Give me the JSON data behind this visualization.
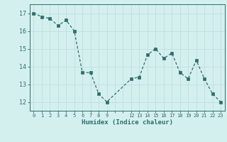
{
  "x": [
    0,
    1,
    2,
    3,
    4,
    5,
    6,
    7,
    8,
    9,
    12,
    13,
    14,
    15,
    16,
    17,
    18,
    19,
    20,
    21,
    22,
    23
  ],
  "y": [
    17.0,
    16.8,
    16.7,
    16.3,
    16.6,
    16.0,
    13.65,
    13.65,
    12.45,
    12.0,
    13.3,
    13.4,
    14.65,
    15.0,
    14.45,
    14.75,
    13.65,
    13.3,
    14.35,
    13.3,
    12.45,
    12.0
  ],
  "xlabel": "Humidex (Indice chaleur)",
  "xlim": [
    -0.5,
    23.5
  ],
  "ylim": [
    11.5,
    17.5
  ],
  "yticks": [
    12,
    13,
    14,
    15,
    16,
    17
  ],
  "xticks": [
    0,
    1,
    2,
    3,
    4,
    5,
    6,
    7,
    8,
    9,
    10,
    11,
    12,
    13,
    14,
    15,
    16,
    17,
    18,
    19,
    20,
    21,
    22,
    23
  ],
  "xticklabels": [
    "0",
    "1",
    "2",
    "3",
    "4",
    "5",
    "6",
    "7",
    "8",
    "9",
    "",
    "",
    "12",
    "13",
    "14",
    "15",
    "16",
    "17",
    "18",
    "19",
    "20",
    "21",
    "22",
    "23"
  ],
  "line_color": "#2d6e6e",
  "marker_color": "#2d6e6e",
  "bg_color": "#d4f0ee",
  "grid_color": "#c0dedd",
  "axis_color": "#2d6e6e",
  "tick_color": "#2d6e6e",
  "xlabel_color": "#2d6e6e"
}
